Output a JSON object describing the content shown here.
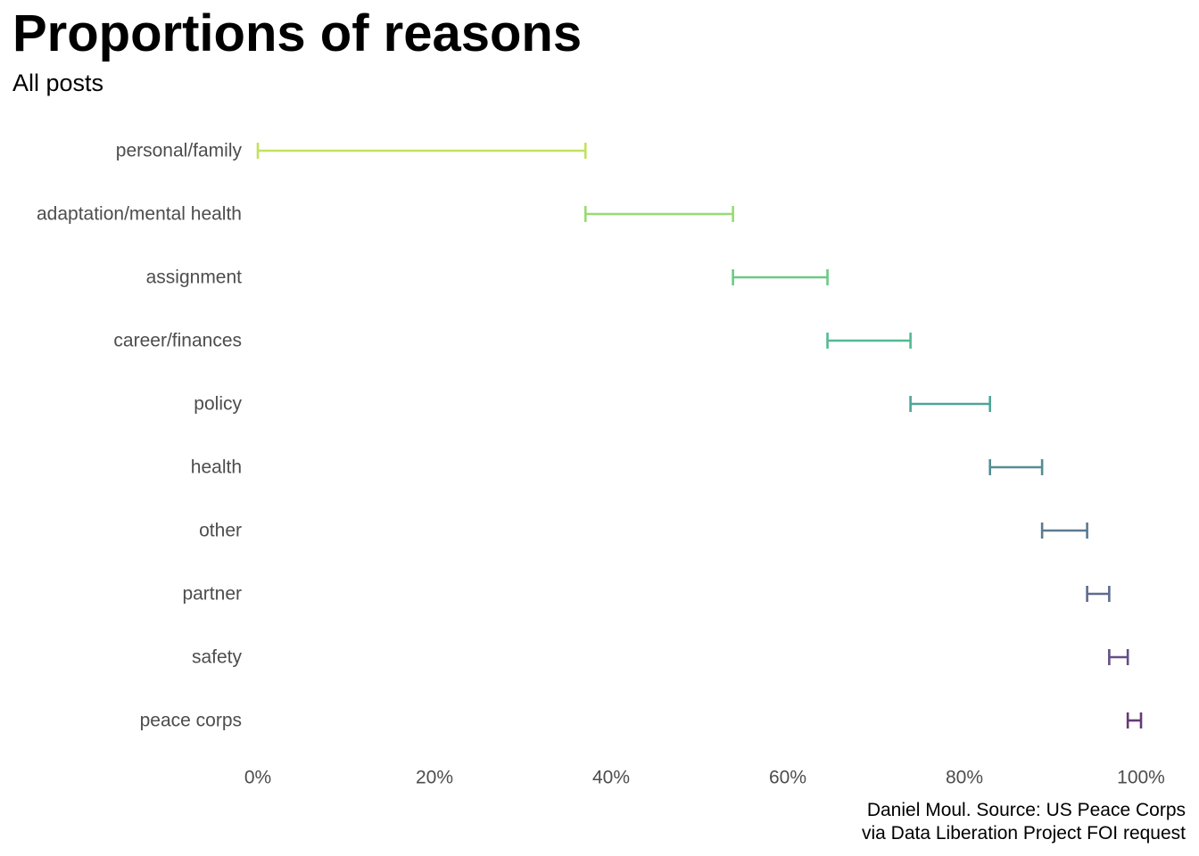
{
  "chart_data": {
    "type": "errorbar",
    "title": "Proportions of reasons",
    "subtitle": "All posts",
    "caption_lines": [
      "Daniel Moul. Source: US Peace Corps",
      "via Data Liberation Project FOI request"
    ],
    "xlabel": "",
    "ylabel": "",
    "xlim": [
      0,
      1
    ],
    "x_ticks": [
      0,
      0.2,
      0.4,
      0.6,
      0.8,
      1.0
    ],
    "x_tick_labels": [
      "0%",
      "20%",
      "40%",
      "60%",
      "80%",
      "100%"
    ],
    "grid": false,
    "legend": "none",
    "categories": [
      {
        "label": "personal/family",
        "start": 0.0,
        "end": 0.371,
        "color": "#c2e15e"
      },
      {
        "label": "adaptation/mental health",
        "start": 0.371,
        "end": 0.538,
        "color": "#95dc72"
      },
      {
        "label": "assignment",
        "start": 0.538,
        "end": 0.645,
        "color": "#6acb84"
      },
      {
        "label": "career/finances",
        "start": 0.645,
        "end": 0.739,
        "color": "#53b993"
      },
      {
        "label": "policy",
        "start": 0.739,
        "end": 0.829,
        "color": "#50a398"
      },
      {
        "label": "health",
        "start": 0.829,
        "end": 0.888,
        "color": "#558c94"
      },
      {
        "label": "other",
        "start": 0.888,
        "end": 0.939,
        "color": "#5b7a91"
      },
      {
        "label": "partner",
        "start": 0.939,
        "end": 0.964,
        "color": "#5f6b8e"
      },
      {
        "label": "safety",
        "start": 0.964,
        "end": 0.985,
        "color": "#634f84"
      },
      {
        "label": "peace corps",
        "start": 0.985,
        "end": 1.0,
        "color": "#653a76"
      }
    ]
  }
}
